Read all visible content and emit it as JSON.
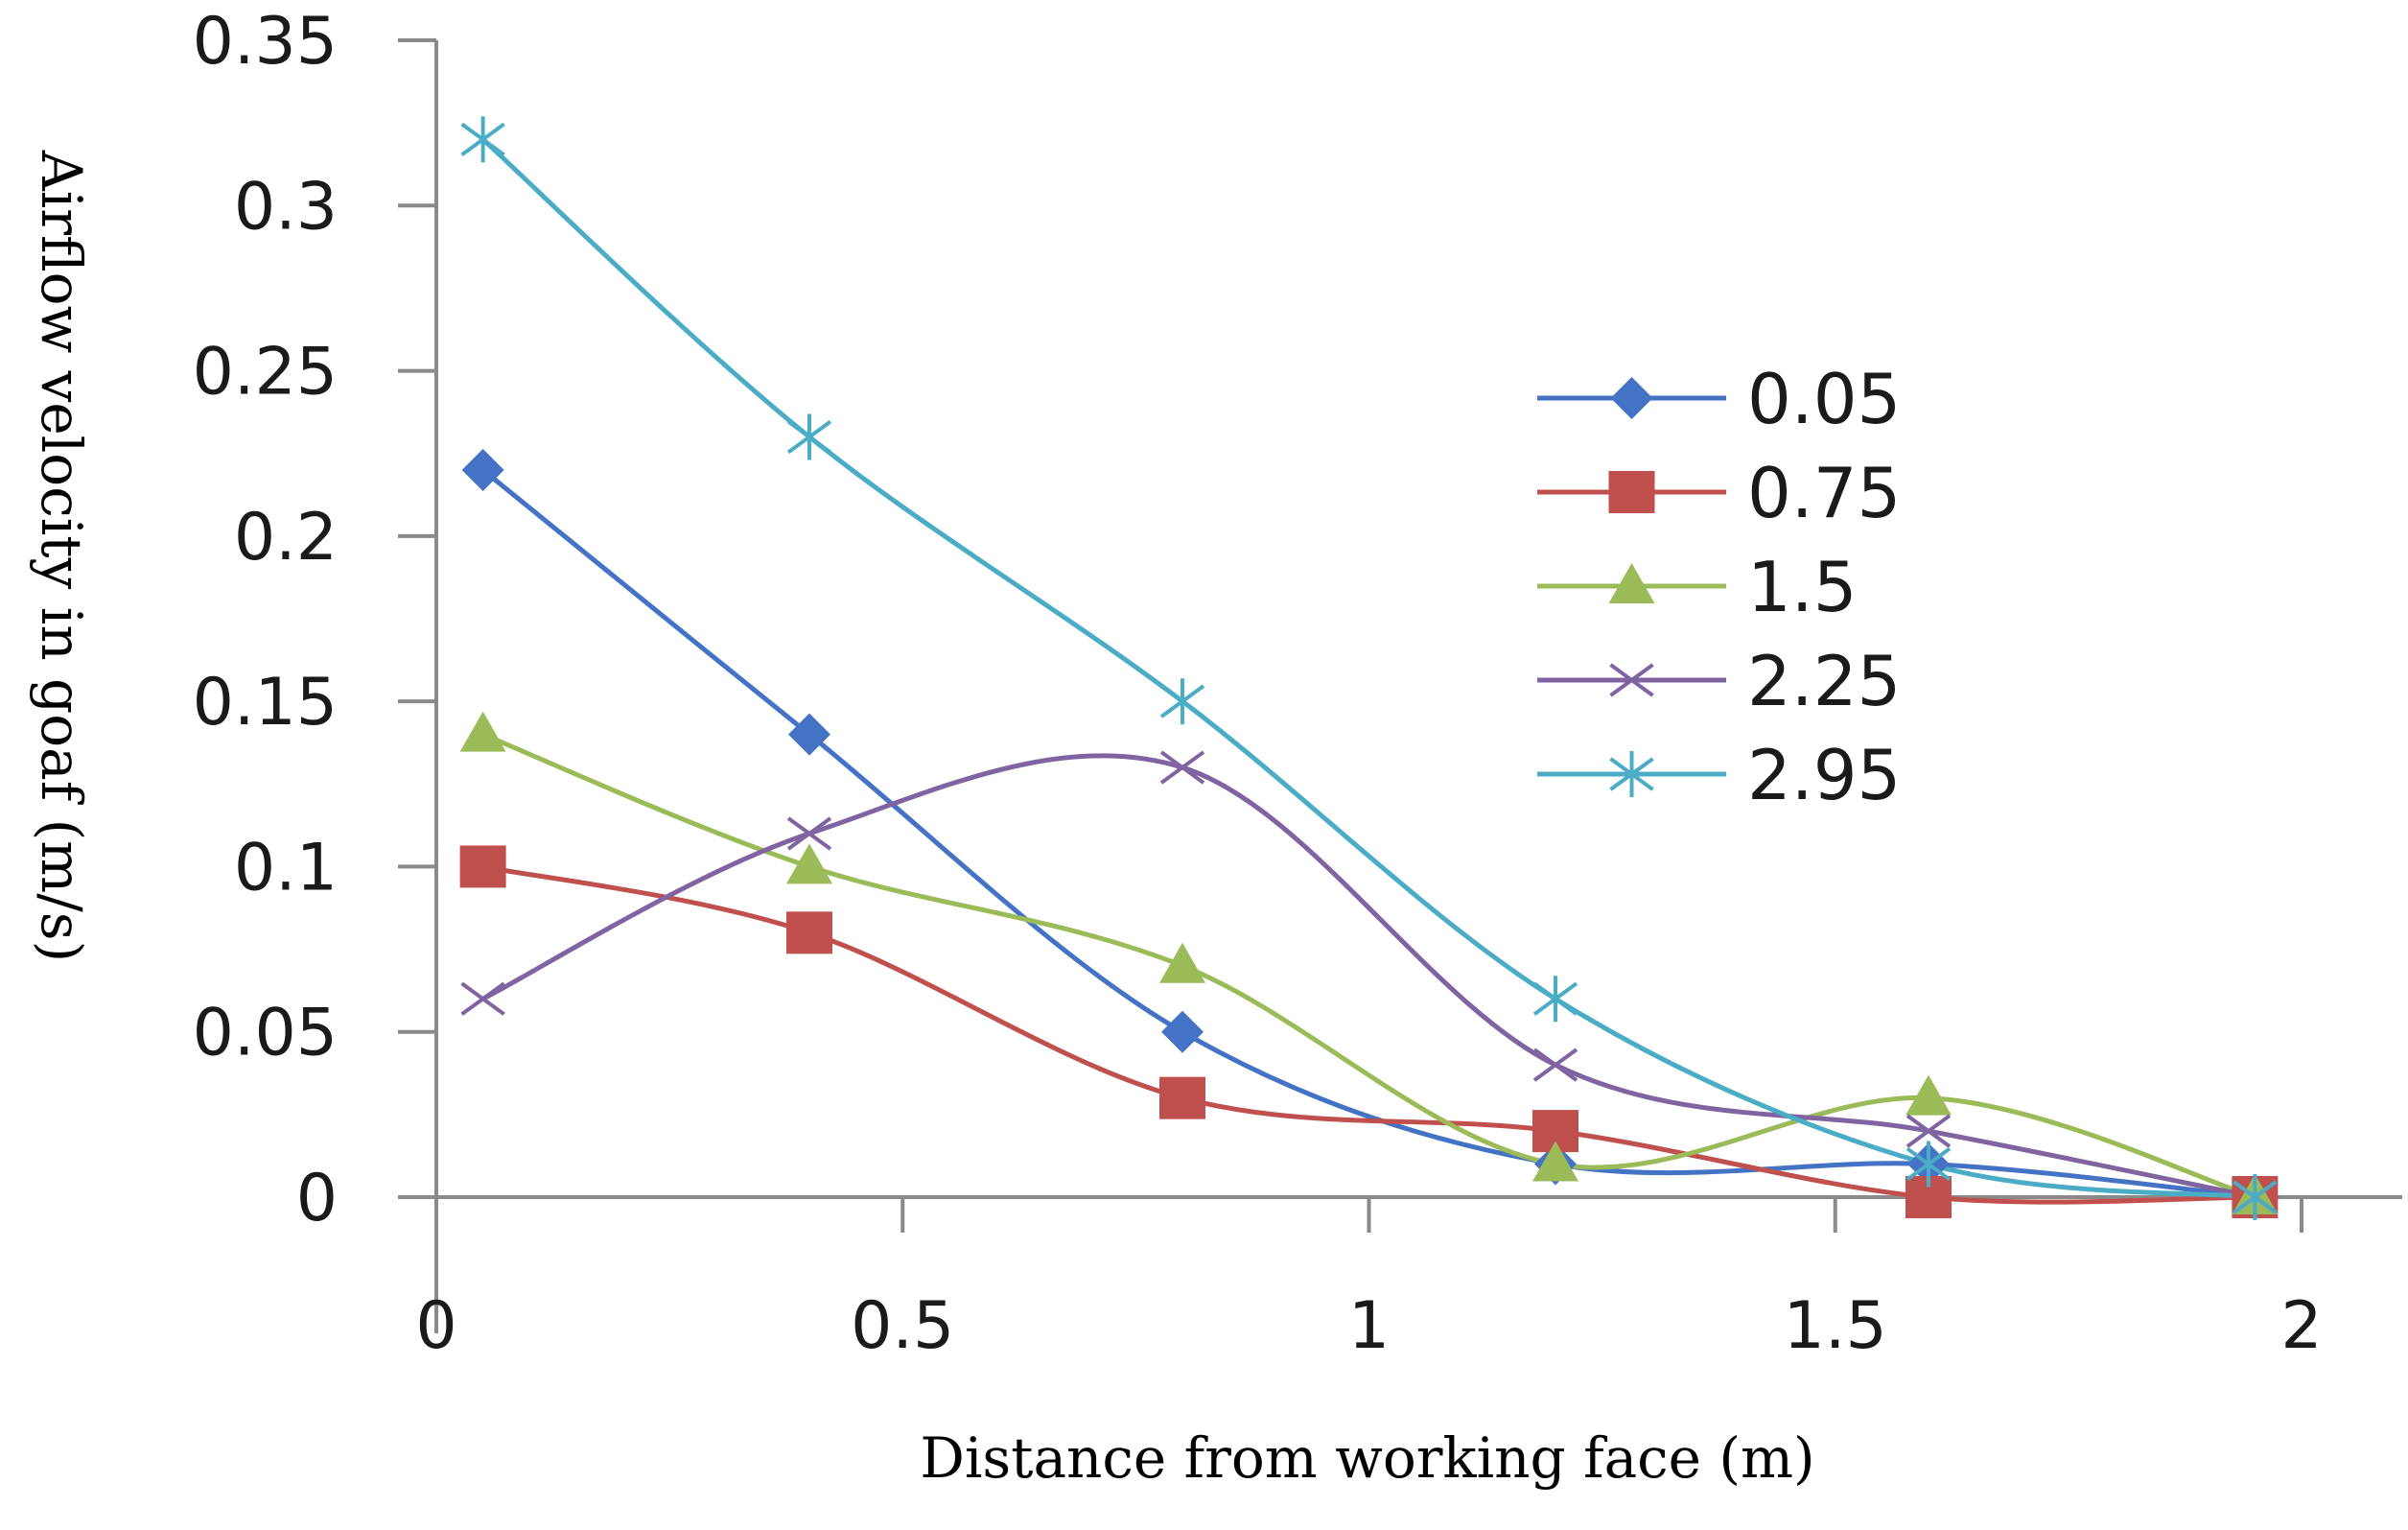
{
  "chart_data": {
    "type": "line",
    "title": "",
    "xlabel": "Distance from working face (m)",
    "ylabel": "Airflow velocity in goaf (m/s)",
    "xlim": [
      0,
      2
    ],
    "ylim": [
      0,
      0.35
    ],
    "x_ticks": [
      "0",
      "0.5",
      "1",
      "1.5",
      "2"
    ],
    "y_ticks": [
      "0",
      "0.05",
      "0.1",
      "0.15",
      "0.2",
      "0.25",
      "0.3",
      "0.35"
    ],
    "x": [
      0.05,
      0.4,
      0.8,
      1.2,
      1.6,
      1.95
    ],
    "grid": false,
    "legend_position": "right",
    "smooth": true,
    "series": [
      {
        "name": "0.05",
        "color": "#4472C4",
        "marker": "diamond",
        "values": [
          0.22,
          0.14,
          0.05,
          0.01,
          0.01,
          0
        ]
      },
      {
        "name": "0.75",
        "color": "#C0504D",
        "marker": "square",
        "values": [
          0.1,
          0.08,
          0.03,
          0.02,
          0,
          0
        ]
      },
      {
        "name": "1.5",
        "color": "#9BBB59",
        "marker": "triangle",
        "values": [
          0.14,
          0.1,
          0.07,
          0.01,
          0.03,
          0
        ]
      },
      {
        "name": "2.25",
        "color": "#8064A2",
        "marker": "x",
        "values": [
          0.06,
          0.11,
          0.13,
          0.04,
          0.02,
          0
        ]
      },
      {
        "name": "2.95",
        "color": "#4BACC6",
        "marker": "asterisk",
        "values": [
          0.32,
          0.23,
          0.15,
          0.06,
          0.01,
          0
        ]
      }
    ]
  }
}
